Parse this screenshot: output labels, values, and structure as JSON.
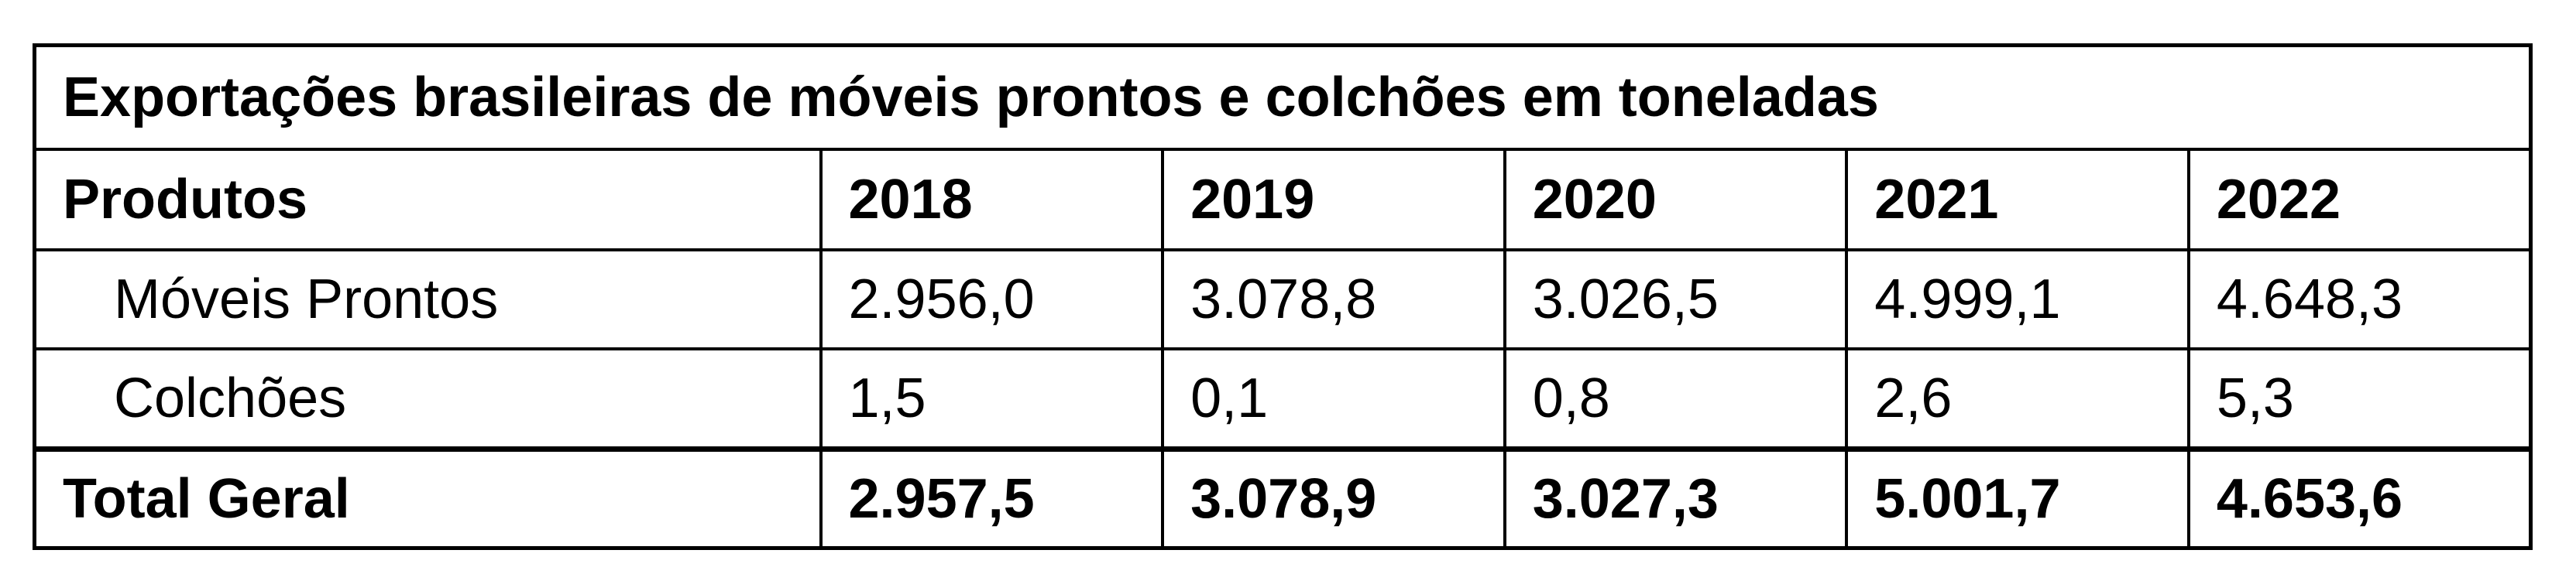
{
  "table": {
    "title": "Exportações brasileiras de móveis prontos e colchões em toneladas",
    "header": [
      "Produtos",
      "2018",
      "2019",
      "2020",
      "2021",
      "2022"
    ],
    "rows": [
      {
        "label": "Móveis Prontos",
        "values": [
          "2.956,0",
          "3.078,8",
          "3.026,5",
          "4.999,1",
          "4.648,3"
        ]
      },
      {
        "label": "Colchões",
        "values": [
          "1,5",
          "0,1",
          "0,8",
          "2,6",
          "5,3"
        ]
      }
    ],
    "total": {
      "label": "Total Geral",
      "values": [
        "2.957,5",
        "3.078,9",
        "3.027,3",
        "5.001,7",
        "4.653,6"
      ]
    }
  }
}
